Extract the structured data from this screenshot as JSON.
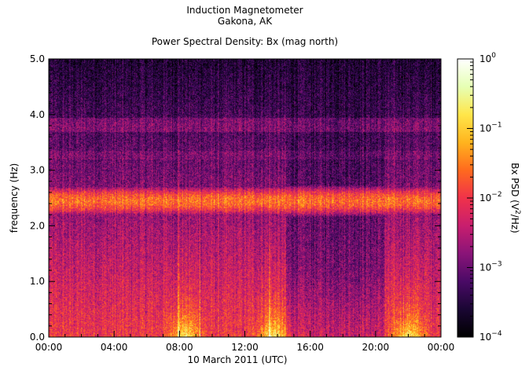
{
  "header": {
    "line1": "Induction Magnetometer",
    "line2": "Gakona, AK",
    "line3": "Power Spectral Density: Bx (mag north)"
  },
  "chart_data": {
    "type": "heatmap",
    "title": "Power Spectral Density: Bx (mag north)",
    "xlabel": "10 March 2011 (UTC)",
    "ylabel": "frequency (Hz)",
    "x_ticks": [
      "00:00",
      "04:00",
      "08:00",
      "12:00",
      "16:00",
      "20:00",
      "00:00"
    ],
    "x_range_hours": [
      0,
      24
    ],
    "y_ticks": [
      "0.0",
      "1.0",
      "2.0",
      "3.0",
      "4.0",
      "5.0"
    ],
    "ylim": [
      0,
      5
    ],
    "colorbar": {
      "label": "Bx PSD (V²/Hz)",
      "label_main": "Bx PSD (V",
      "label_sup": "2",
      "label_end": "/Hz)",
      "scale": "log",
      "range": [
        0.0001,
        1
      ],
      "ticks": [
        {
          "base": "10",
          "exp": "0",
          "value": 1
        },
        {
          "base": "10",
          "exp": "−1",
          "value": 0.1
        },
        {
          "base": "10",
          "exp": "−2",
          "value": 0.01
        },
        {
          "base": "10",
          "exp": "−3",
          "value": 0.001
        },
        {
          "base": "10",
          "exp": "−4",
          "value": 0.0001
        }
      ],
      "colors": [
        "#000000",
        "#1a0633",
        "#4a0a66",
        "#8a1478",
        "#c81e6e",
        "#f0324a",
        "#ff6a1e",
        "#ffb41e",
        "#ffe64a",
        "#e6ffb4",
        "#ffffff"
      ]
    },
    "features": {
      "background_log10_psd_at_0hz": -2.0,
      "background_log10_psd_at_5hz": -3.6,
      "resonance_band_center_hz": 2.45,
      "resonance_band_width_hz": 0.18,
      "resonance_band_log10_psd": -1.6,
      "quiet_window_hours": [
        14.5,
        20.5
      ],
      "bursts_hours": [
        8.3,
        13.7,
        22.0
      ],
      "spikes_hours": [
        7.9,
        9.2,
        13.5
      ]
    }
  }
}
